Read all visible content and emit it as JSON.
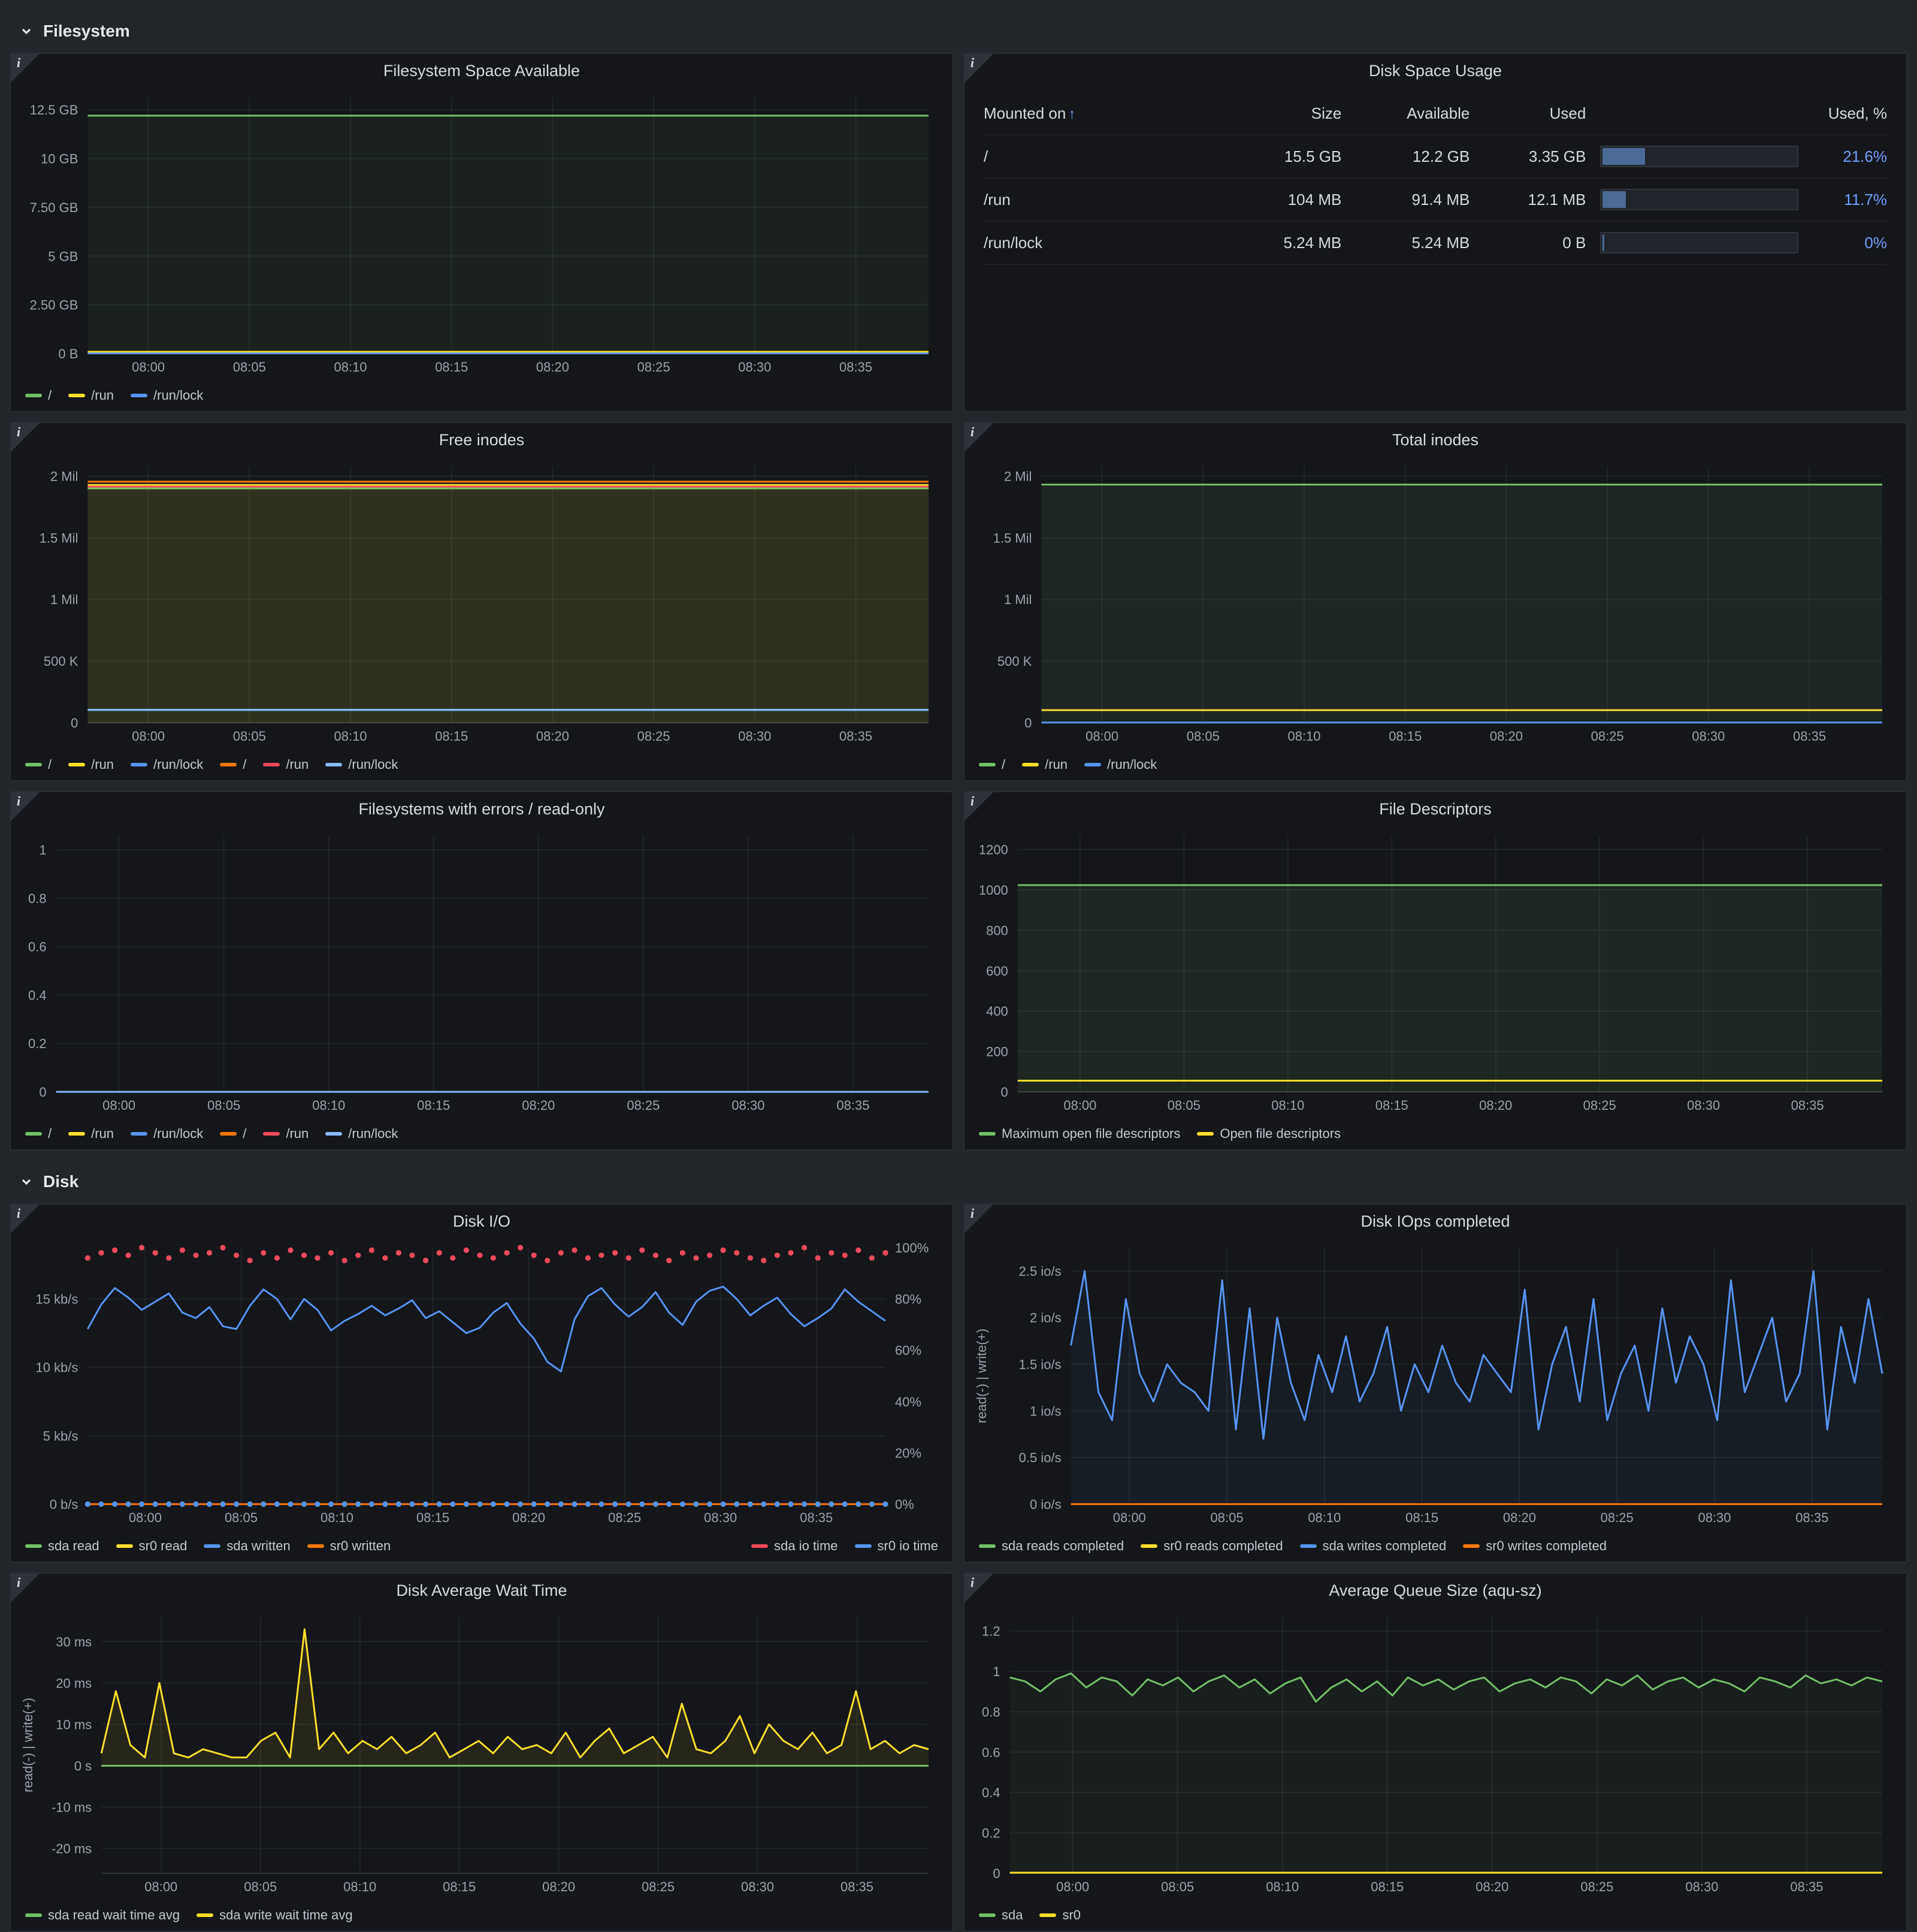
{
  "sections": {
    "filesystem": {
      "label": "Filesystem"
    },
    "disk": {
      "label": "Disk"
    }
  },
  "colors": {
    "page_bg": "#222529",
    "panel_bg": "#141619",
    "green": "#73bf69",
    "yellow": "#fade2a",
    "blue": "#5794f2",
    "orange": "#ff780a",
    "red": "#f2495c",
    "light_blue": "#8ab8ff",
    "pct_link": "#6e9fff"
  },
  "chart_data": [
    {
      "id": "filesystem-space-available",
      "type": "line",
      "title": "Filesystem Space Available",
      "x": [
        "08:00",
        "08:05",
        "08:10",
        "08:15",
        "08:20",
        "08:25",
        "08:30",
        "08:35"
      ],
      "y_tick_vals": [
        0,
        2.5,
        5,
        7.5,
        10,
        12.5
      ],
      "y_tick_labels": [
        "0 B",
        "2.50 GB",
        "5 GB",
        "7.50 GB",
        "10 GB",
        "12.5 GB"
      ],
      "ylim": [
        0,
        13.15
      ],
      "ylabel": "",
      "series": [
        {
          "name": "/",
          "color": "#73bf69",
          "flat": 12.2,
          "fill": 0.07
        },
        {
          "name": "/run",
          "color": "#fade2a",
          "flat": 0.0914
        },
        {
          "name": "/run/lock",
          "color": "#5794f2",
          "flat": 0.00524
        }
      ]
    },
    {
      "id": "disk-space-usage",
      "type": "table",
      "title": "Disk Space Usage",
      "columns": [
        "Mounted on",
        "Size",
        "Available",
        "Used",
        "Used, %"
      ],
      "sort_arrow": "↑",
      "gauge_fill": "#4b6b96",
      "pct_color": "#6e9fff",
      "rows": [
        [
          "/",
          "15.5 GB",
          "12.2 GB",
          "3.35 GB",
          21.6,
          "21.6%"
        ],
        [
          "/run",
          "104 MB",
          "91.4 MB",
          "12.1 MB",
          11.7,
          "11.7%"
        ],
        [
          "/run/lock",
          "5.24 MB",
          "5.24 MB",
          "0 B",
          0,
          "0%"
        ]
      ]
    },
    {
      "id": "free-inodes",
      "type": "line",
      "title": "Free inodes",
      "x": [
        "08:00",
        "08:05",
        "08:10",
        "08:15",
        "08:20",
        "08:25",
        "08:30",
        "08:35"
      ],
      "y_tick_vals": [
        0,
        500000,
        1000000,
        1500000,
        2000000
      ],
      "y_tick_labels": [
        "0",
        "500 K",
        "1 Mil",
        "1.5 Mil",
        "2 Mil"
      ],
      "ylim": [
        0,
        2080000
      ],
      "series": [
        {
          "name": "/",
          "color": "#73bf69",
          "flat": 1900000,
          "fill": 0.05
        },
        {
          "name": "/run",
          "color": "#fade2a",
          "flat": 1928000,
          "fill": 0.1
        },
        {
          "name": "/run/lock",
          "color": "#5794f2",
          "flat": 102000
        },
        {
          "name": "/",
          "color": "#ff780a",
          "flat": 1955000
        },
        {
          "name": "/run",
          "color": "#f2495c",
          "flat": 1915000
        },
        {
          "name": "/run/lock",
          "color": "#8ab8ff",
          "flat": 105000
        }
      ]
    },
    {
      "id": "total-inodes",
      "type": "line",
      "title": "Total inodes",
      "x": [
        "08:00",
        "08:05",
        "08:10",
        "08:15",
        "08:20",
        "08:25",
        "08:30",
        "08:35"
      ],
      "y_tick_vals": [
        0,
        500000,
        1000000,
        1500000,
        2000000
      ],
      "y_tick_labels": [
        "0",
        "500 K",
        "1 Mil",
        "1.5 Mil",
        "2 Mil"
      ],
      "ylim": [
        0,
        2080000
      ],
      "series": [
        {
          "name": "/",
          "color": "#73bf69",
          "flat": 1931000,
          "fill": 0.1
        },
        {
          "name": "/run",
          "color": "#fade2a",
          "flat": 102000
        },
        {
          "name": "/run/lock",
          "color": "#5794f2",
          "flat": 1280
        }
      ]
    },
    {
      "id": "filesystems-errors-readonly",
      "type": "line",
      "title": "Filesystems with errors / read-only",
      "x": [
        "08:00",
        "08:05",
        "08:10",
        "08:15",
        "08:20",
        "08:25",
        "08:30",
        "08:35"
      ],
      "y_tick_vals": [
        0,
        0.2,
        0.4,
        0.6,
        0.8,
        1
      ],
      "y_tick_labels": [
        "0",
        "0.2",
        "0.4",
        "0.6",
        "0.8",
        "1"
      ],
      "ylim": [
        0,
        1.06
      ],
      "series": [
        {
          "name": "/",
          "color": "#73bf69",
          "flat": 0
        },
        {
          "name": "/run",
          "color": "#fade2a",
          "flat": 0
        },
        {
          "name": "/run/lock",
          "color": "#5794f2",
          "flat": 0
        },
        {
          "name": "/",
          "color": "#ff780a",
          "flat": 0
        },
        {
          "name": "/run",
          "color": "#f2495c",
          "flat": 0
        },
        {
          "name": "/run/lock",
          "color": "#8ab8ff",
          "flat": 0
        }
      ]
    },
    {
      "id": "file-descriptors",
      "type": "line",
      "title": "File Descriptors",
      "x": [
        "08:00",
        "08:05",
        "08:10",
        "08:15",
        "08:20",
        "08:25",
        "08:30",
        "08:35"
      ],
      "y_tick_vals": [
        0,
        200,
        400,
        600,
        800,
        1000,
        1200
      ],
      "y_tick_labels": [
        "0",
        "200",
        "400",
        "600",
        "800",
        "1000",
        "1200"
      ],
      "ylim": [
        0,
        1270
      ],
      "series": [
        {
          "name": "Maximum open file descriptors",
          "color": "#73bf69",
          "flat": 1024,
          "fill": 0.1
        },
        {
          "name": "Open file descriptors",
          "color": "#fade2a",
          "flat": 55
        }
      ]
    },
    {
      "id": "disk-io",
      "type": "line",
      "title": "Disk I/O",
      "x": [
        "08:00",
        "08:05",
        "08:10",
        "08:15",
        "08:20",
        "08:25",
        "08:30",
        "08:35"
      ],
      "y_tick_vals": [
        0,
        5,
        10,
        15
      ],
      "y_tick_labels": [
        "0 b/s",
        "5 kb/s",
        "10 kb/s",
        "15 kb/s"
      ],
      "ylim": [
        0,
        18.75
      ],
      "y_tick_vals_right": [
        0,
        20,
        40,
        60,
        80,
        100
      ],
      "y_tick_labels_right": [
        "0%",
        "20%",
        "40%",
        "60%",
        "80%",
        "100%"
      ],
      "ylim_right": [
        0,
        100
      ],
      "series": [
        {
          "name": "sda read",
          "color": "#73bf69",
          "flat": 0
        },
        {
          "name": "sr0 read",
          "color": "#fade2a",
          "flat": 0
        },
        {
          "name": "sda written",
          "color": "#5794f2",
          "values": [
            12.8,
            14.6,
            15.8,
            15.1,
            14.2,
            14.8,
            15.4,
            14.0,
            13.6,
            14.4,
            13.0,
            12.8,
            14.5,
            15.7,
            15.0,
            13.5,
            15.0,
            14.2,
            12.7,
            13.4,
            13.9,
            14.5,
            13.8,
            14.3,
            14.9,
            13.6,
            14.1,
            13.3,
            12.5,
            12.9,
            14.0,
            14.7,
            13.2,
            12.1,
            10.4,
            9.7,
            13.5,
            15.2,
            15.8,
            14.6,
            13.7,
            14.4,
            15.5,
            14.0,
            13.1,
            14.8,
            15.6,
            15.9,
            15.0,
            13.8,
            14.5,
            15.1,
            13.9,
            13.0,
            13.6,
            14.3,
            15.7,
            14.8,
            14.1,
            13.4
          ]
        },
        {
          "name": "sr0 written",
          "color": "#ff780a",
          "flat": 0
        },
        {
          "name": "sda io time",
          "color": "#f2495c",
          "axis": "right",
          "style": "points",
          "legend_right": true,
          "values": [
            96,
            98,
            99,
            97,
            100,
            98,
            96,
            99,
            97,
            98,
            100,
            97,
            95,
            98,
            96,
            99,
            97,
            96,
            98,
            95,
            97,
            99,
            96,
            98,
            97,
            95,
            98,
            96,
            99,
            97,
            96,
            98,
            100,
            97,
            95,
            98,
            99,
            96,
            97,
            98,
            96,
            99,
            97,
            95,
            98,
            96,
            97,
            99,
            98,
            96,
            95,
            97,
            98,
            100,
            96,
            98,
            97,
            99,
            96,
            98
          ]
        },
        {
          "name": "sr0 io time",
          "color": "#5794f2",
          "axis": "right",
          "style": "points",
          "flat": 0,
          "legend_right": true
        }
      ]
    },
    {
      "id": "disk-iops-completed",
      "type": "line",
      "title": "Disk IOps completed",
      "ylabel": "read(-) | write(+)",
      "x": [
        "08:00",
        "08:05",
        "08:10",
        "08:15",
        "08:20",
        "08:25",
        "08:30",
        "08:35"
      ],
      "y_tick_vals": [
        0,
        0.5,
        1,
        1.5,
        2,
        2.5
      ],
      "y_tick_labels": [
        "0 io/s",
        "0.5 io/s",
        "1 io/s",
        "1.5 io/s",
        "2 io/s",
        "2.5 io/s"
      ],
      "ylim": [
        0,
        2.75
      ],
      "series": [
        {
          "name": "sda reads completed",
          "color": "#73bf69",
          "flat": 0
        },
        {
          "name": "sr0 reads completed",
          "color": "#fade2a",
          "flat": 0
        },
        {
          "name": "sda writes completed",
          "color": "#5794f2",
          "fill": 0.06,
          "values": [
            1.7,
            2.5,
            1.2,
            0.9,
            2.2,
            1.4,
            1.1,
            1.5,
            1.3,
            1.2,
            1.0,
            2.4,
            0.8,
            2.1,
            0.7,
            2.0,
            1.3,
            0.9,
            1.6,
            1.2,
            1.8,
            1.1,
            1.4,
            1.9,
            1.0,
            1.5,
            1.2,
            1.7,
            1.3,
            1.1,
            1.6,
            1.4,
            1.2,
            2.3,
            0.8,
            1.5,
            1.9,
            1.1,
            2.2,
            0.9,
            1.4,
            1.7,
            1.0,
            2.1,
            1.3,
            1.8,
            1.5,
            0.9,
            2.4,
            1.2,
            1.6,
            2.0,
            1.1,
            1.4,
            2.5,
            0.8,
            1.9,
            1.3,
            2.2,
            1.4
          ]
        },
        {
          "name": "sr0 writes completed",
          "color": "#ff780a",
          "flat": 0
        }
      ]
    },
    {
      "id": "disk-average-wait-time",
      "type": "line",
      "title": "Disk Average Wait Time",
      "ylabel": "read(-) | write(+)",
      "x": [
        "08:00",
        "08:05",
        "08:10",
        "08:15",
        "08:20",
        "08:25",
        "08:30",
        "08:35"
      ],
      "y_tick_vals": [
        -20,
        -10,
        0,
        10,
        20,
        30
      ],
      "y_tick_labels": [
        "-20 ms",
        "-10 ms",
        "0 s",
        "10 ms",
        "20 ms",
        "30 ms"
      ],
      "ylim": [
        -26,
        36
      ],
      "series": [
        {
          "name": "sda read wait time avg",
          "color": "#73bf69",
          "flat": 0
        },
        {
          "name": "sda write wait time avg",
          "color": "#fade2a",
          "fill": 0.08,
          "values": [
            3,
            18,
            5,
            2,
            20,
            3,
            2,
            4,
            3,
            2,
            2,
            6,
            8,
            2,
            33,
            4,
            8,
            3,
            6,
            4,
            7,
            3,
            5,
            8,
            2,
            4,
            6,
            3,
            7,
            4,
            5,
            3,
            8,
            2,
            6,
            9,
            3,
            5,
            7,
            2,
            15,
            4,
            3,
            6,
            12,
            3,
            10,
            6,
            4,
            8,
            3,
            5,
            18,
            4,
            6,
            3,
            5,
            4
          ]
        }
      ]
    },
    {
      "id": "average-queue-size",
      "type": "line",
      "title": "Average Queue Size (aqu-sz)",
      "x": [
        "08:00",
        "08:05",
        "08:10",
        "08:15",
        "08:20",
        "08:25",
        "08:30",
        "08:35"
      ],
      "y_tick_vals": [
        0,
        0.2,
        0.4,
        0.6,
        0.8,
        1,
        1.2
      ],
      "y_tick_labels": [
        "0",
        "0.2",
        "0.4",
        "0.6",
        "0.8",
        "1",
        "1.2"
      ],
      "ylim": [
        0,
        1.27
      ],
      "series": [
        {
          "name": "sda",
          "color": "#73bf69",
          "fill": 0.06,
          "values": [
            0.97,
            0.95,
            0.9,
            0.96,
            0.99,
            0.92,
            0.97,
            0.95,
            0.88,
            0.96,
            0.93,
            0.97,
            0.9,
            0.95,
            0.98,
            0.92,
            0.96,
            0.89,
            0.94,
            0.97,
            0.85,
            0.92,
            0.96,
            0.9,
            0.95,
            0.88,
            0.97,
            0.93,
            0.96,
            0.91,
            0.95,
            0.97,
            0.9,
            0.94,
            0.96,
            0.92,
            0.97,
            0.95,
            0.89,
            0.96,
            0.93,
            0.98,
            0.91,
            0.95,
            0.97,
            0.92,
            0.96,
            0.94,
            0.9,
            0.97,
            0.95,
            0.92,
            0.98,
            0.94,
            0.96,
            0.93,
            0.97,
            0.95
          ]
        },
        {
          "name": "sr0",
          "color": "#fade2a",
          "flat": 0.003
        }
      ]
    }
  ]
}
